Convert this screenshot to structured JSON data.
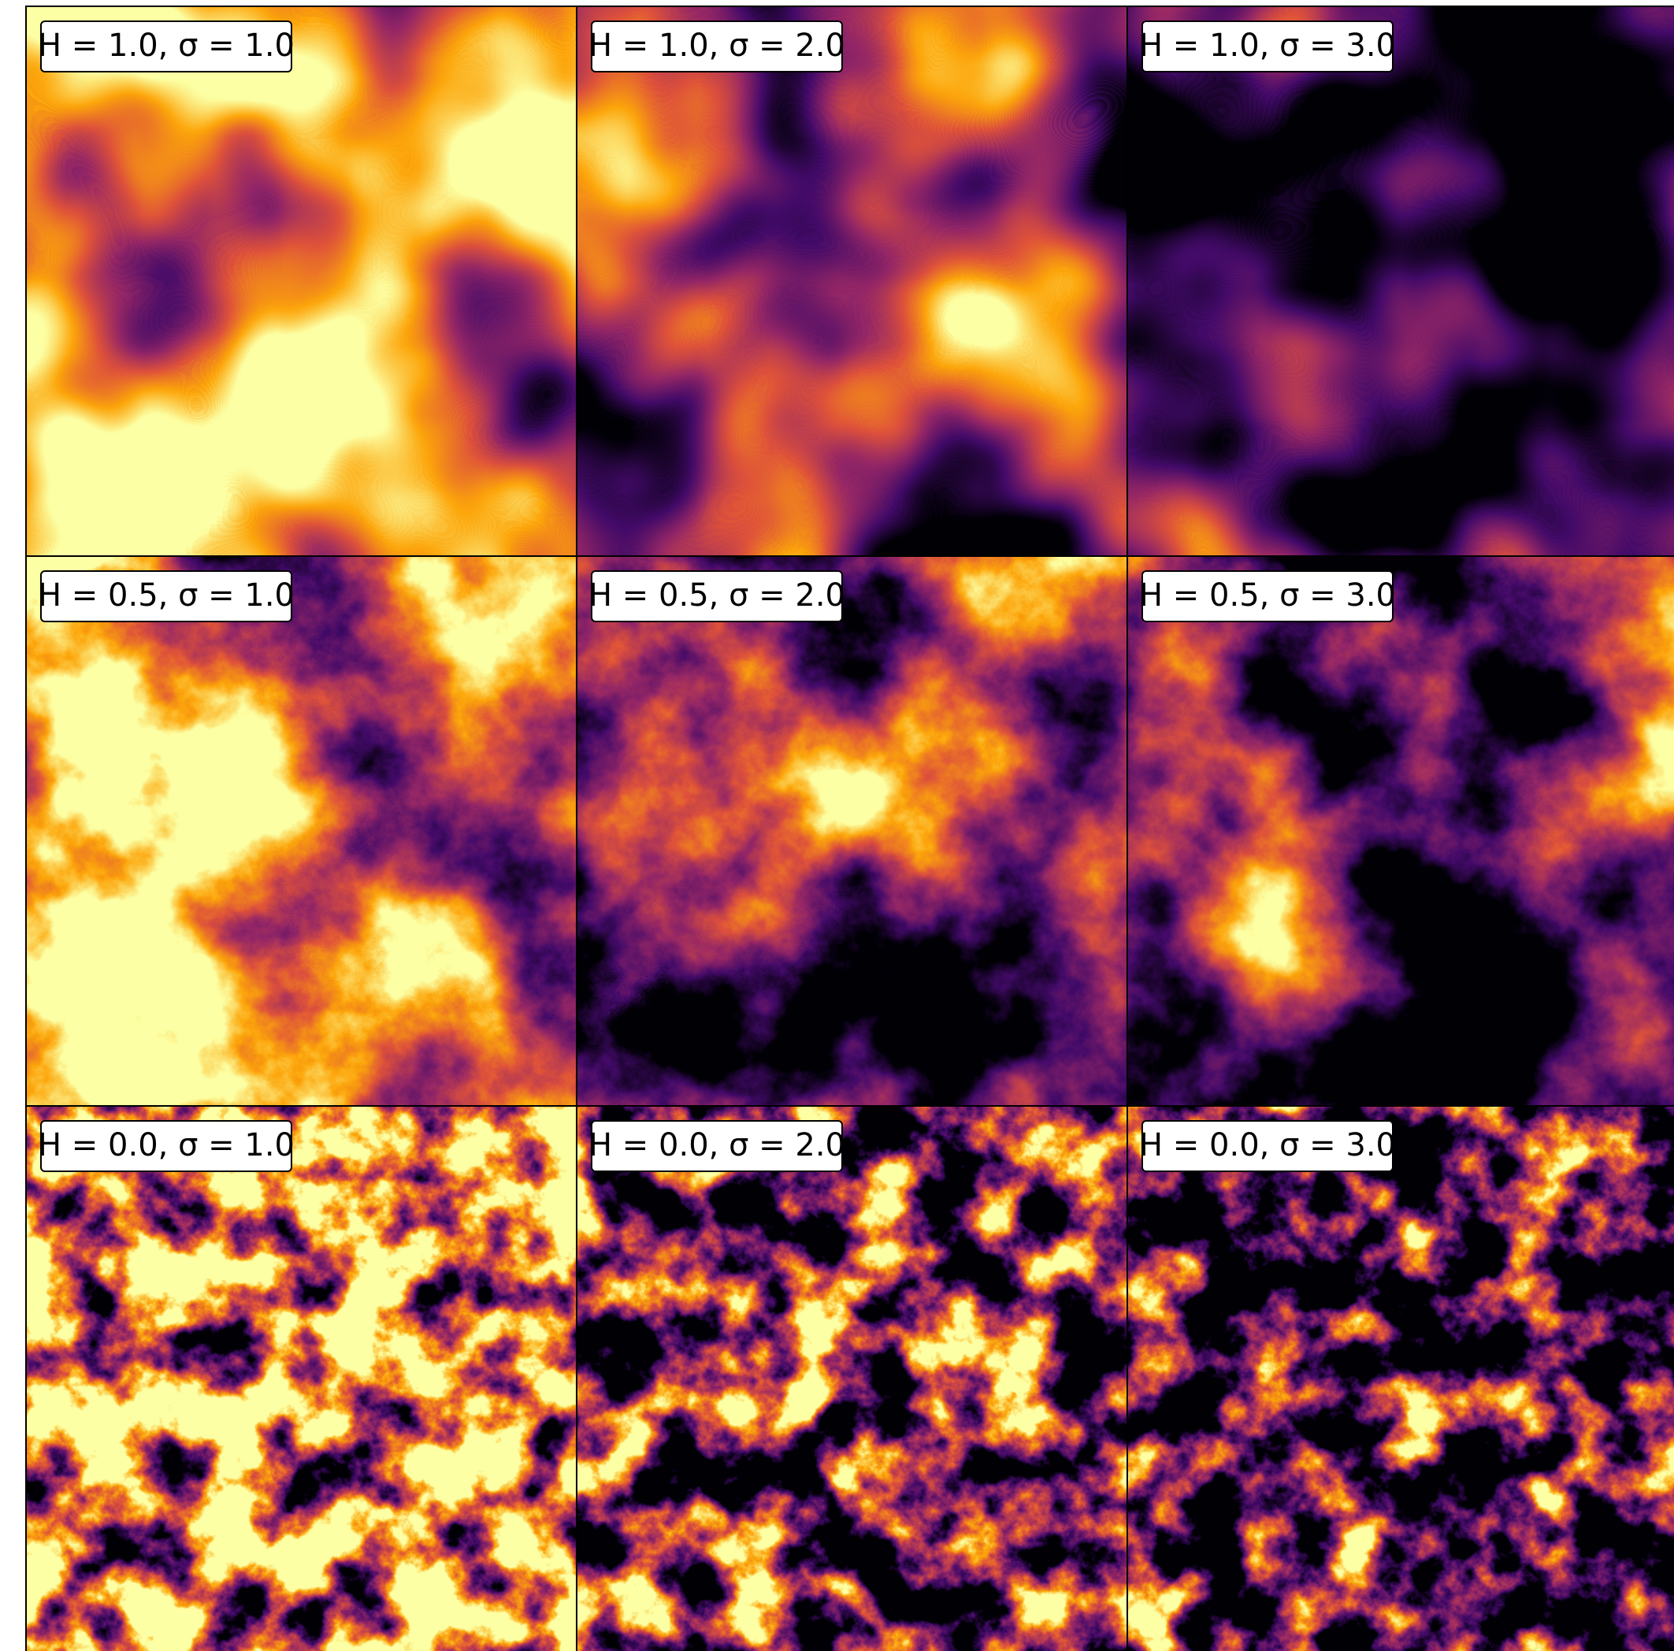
{
  "panels": [
    {
      "label": "H = 1.0, σ = 1.0"
    },
    {
      "label": "H = 1.0, σ = 2.0"
    },
    {
      "label": "H = 1.0, σ = 3.0"
    },
    {
      "label": "H = 0.5, σ = 1.0"
    },
    {
      "label": "H = 0.5, σ = 2.0"
    },
    {
      "label": "H = 0.5, σ = 3.0"
    },
    {
      "label": "H = 0.0, σ = 1.0"
    },
    {
      "label": "H = 0.0, σ = 2.0"
    },
    {
      "label": "H = 0.0, σ = 3.0"
    }
  ]
}
